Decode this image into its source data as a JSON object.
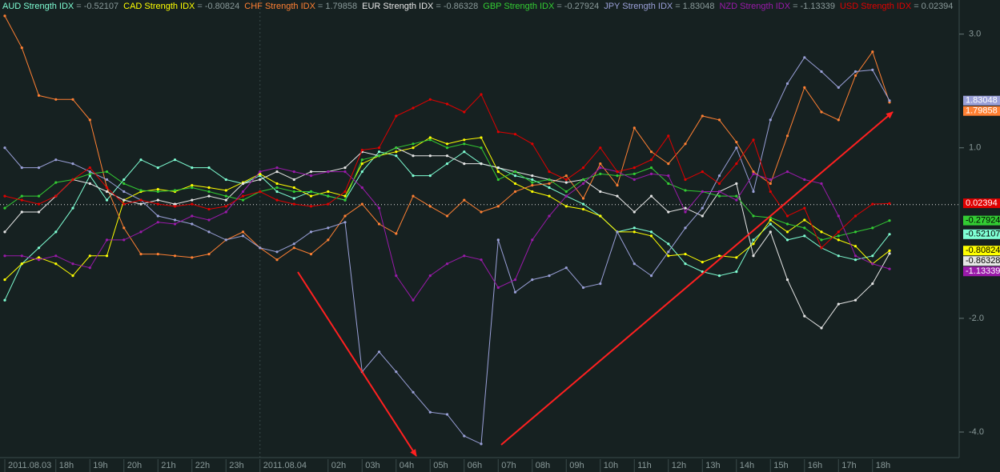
{
  "chart_data": {
    "type": "line",
    "value_separator": "=",
    "categories": [
      "2011.08.03",
      null,
      null,
      "18h",
      null,
      "19h",
      null,
      "20h",
      null,
      "21h",
      null,
      "22h",
      null,
      "23h",
      null,
      "2011.08.04",
      null,
      null,
      null,
      "02h",
      null,
      "03h",
      null,
      "04h",
      null,
      "05h",
      null,
      "06h",
      null,
      "07h",
      null,
      "08h",
      null,
      "09h",
      null,
      "10h",
      null,
      "11h",
      null,
      "12h",
      null,
      "13h",
      null,
      "14h",
      null,
      "15h",
      null,
      "16h",
      null,
      "17h",
      null,
      "18h",
      null
    ],
    "ylim": [
      3.6,
      -4.45
    ],
    "yticks": [
      {
        "value": 3,
        "label": "3.0"
      },
      {
        "value": 1,
        "label": "1.0"
      },
      {
        "value": -2,
        "label": "-2.0"
      },
      {
        "value": -4,
        "label": "-4.0"
      }
    ],
    "zero_line": true,
    "series": [
      {
        "name": "AUD Strength IDX",
        "current": -0.52107,
        "color": "#7fffd4",
        "values": [
          -1.68,
          -1.04,
          -0.76,
          -0.48,
          -0.06,
          0.51,
          0.08,
          0.44,
          0.79,
          0.65,
          0.79,
          0.65,
          0.65,
          0.44,
          0.37,
          0.51,
          0.23,
          0.11,
          0.23,
          0.15,
          0.08,
          0.58,
          0.93,
          0.86,
          0.51,
          0.51,
          0.72,
          0.93,
          0.72,
          0.65,
          0.51,
          0.44,
          0.3,
          0.15,
          0.01,
          -0.2,
          -0.48,
          -0.41,
          -0.48,
          -0.69,
          -1.04,
          -1.18,
          -1.25,
          -1.18,
          -0.62,
          -0.34,
          -0.62,
          -0.55,
          -0.76,
          -0.9,
          -0.97,
          -0.9,
          -0.52
        ]
      },
      {
        "name": "CAD Strength IDX",
        "current": -0.80824,
        "color": "#ffff00",
        "values": [
          -1.32,
          -1.04,
          -0.93,
          -1.04,
          -1.25,
          -0.9,
          -0.9,
          0.08,
          0.23,
          0.27,
          0.23,
          0.34,
          0.3,
          0.25,
          0.39,
          0.54,
          0.37,
          0.3,
          0.15,
          0.23,
          0.15,
          0.72,
          0.86,
          0.93,
          1.0,
          1.18,
          1.07,
          1.14,
          1.18,
          0.58,
          0.37,
          0.23,
          0.15,
          -0.03,
          -0.08,
          -0.2,
          -0.48,
          -0.48,
          -0.55,
          -0.9,
          -0.87,
          -1.01,
          -0.9,
          -0.93,
          -0.69,
          -0.27,
          -0.48,
          -0.27,
          -0.48,
          -0.62,
          -0.73,
          -1.04,
          -0.81
        ]
      },
      {
        "name": "CHF Strength IDX",
        "current": 1.79858,
        "color": "#ff8033",
        "values": [
          3.32,
          2.76,
          1.92,
          1.85,
          1.85,
          1.49,
          0.3,
          -0.41,
          -0.87,
          -0.87,
          -0.9,
          -0.93,
          -0.87,
          -0.62,
          -0.48,
          -0.76,
          -0.97,
          -0.76,
          -0.87,
          -0.62,
          -0.2,
          0.01,
          -0.34,
          -0.51,
          0.15,
          -0.03,
          -0.2,
          0.08,
          -0.13,
          -0.03,
          0.23,
          0.34,
          0.37,
          0.51,
          0.11,
          0.72,
          0.34,
          1.35,
          0.93,
          0.72,
          1.07,
          1.56,
          1.49,
          1.1,
          0.58,
          0.37,
          1.21,
          2.06,
          1.63,
          1.49,
          2.27,
          2.69,
          1.8
        ]
      },
      {
        "name": "EUR Strength IDX",
        "current": -0.86328,
        "color": "#e6e6e6",
        "values": [
          -0.48,
          -0.13,
          -0.13,
          0.15,
          0.44,
          0.37,
          0.23,
          0.08,
          0.01,
          0.08,
          0.01,
          0.08,
          0.15,
          0.08,
          0.37,
          0.44,
          0.58,
          0.44,
          0.58,
          0.58,
          0.65,
          0.93,
          0.86,
          1.0,
          0.86,
          0.86,
          0.86,
          0.72,
          0.72,
          0.65,
          0.58,
          0.51,
          0.44,
          0.39,
          0.44,
          0.23,
          0.15,
          -0.13,
          0.15,
          -0.13,
          -0.06,
          -0.2,
          0.23,
          0.37,
          -0.9,
          -0.48,
          -1.32,
          -1.96,
          -2.17,
          -1.75,
          -1.68,
          -1.39,
          -0.86
        ]
      },
      {
        "name": "GBP Strength IDX",
        "current": -0.27924,
        "color": "#33cc33",
        "values": [
          -0.06,
          0.15,
          0.15,
          0.39,
          0.44,
          0.54,
          0.58,
          0.37,
          0.25,
          0.23,
          0.25,
          0.3,
          0.23,
          0.15,
          0.08,
          0.23,
          0.3,
          0.23,
          0.23,
          0.15,
          0.08,
          0.79,
          0.86,
          1.0,
          1.07,
          1.14,
          1.0,
          1.07,
          1.0,
          0.44,
          0.58,
          0.39,
          0.44,
          0.23,
          0.44,
          0.54,
          0.51,
          0.54,
          0.65,
          0.37,
          0.25,
          0.23,
          0.15,
          0.15,
          -0.2,
          -0.23,
          -0.34,
          -0.41,
          -0.62,
          -0.55,
          -0.48,
          -0.41,
          -0.28
        ]
      },
      {
        "name": "JPY Strength IDX",
        "current": 1.83048,
        "color": "#9aa0d8",
        "values": [
          1.0,
          0.65,
          0.65,
          0.79,
          0.72,
          0.58,
          0.44,
          0.23,
          0.08,
          -0.2,
          -0.27,
          -0.34,
          -0.48,
          -0.62,
          -0.55,
          -0.76,
          -0.83,
          -0.69,
          -0.48,
          -0.41,
          -0.31,
          -2.94,
          -2.59,
          -2.94,
          -3.3,
          -3.65,
          -3.69,
          -4.07,
          -4.21,
          -0.62,
          -1.54,
          -1.32,
          -1.25,
          -1.11,
          -1.46,
          -1.39,
          -0.48,
          -1.04,
          -1.25,
          -0.83,
          -0.41,
          -0.06,
          0.51,
          1.0,
          0.23,
          1.49,
          2.13,
          2.59,
          2.34,
          2.06,
          2.34,
          2.37,
          1.83
        ]
      },
      {
        "name": "NZD Strength IDX",
        "current": -1.13339,
        "color": "#9a1aaa",
        "values": [
          -0.9,
          -0.9,
          -0.97,
          -0.9,
          -1.04,
          -1.11,
          -0.62,
          -0.62,
          -0.48,
          -0.31,
          -0.34,
          -0.2,
          -0.27,
          -0.13,
          0.23,
          0.58,
          0.65,
          0.58,
          0.51,
          0.58,
          0.58,
          0.3,
          -0.06,
          -1.25,
          -1.68,
          -1.25,
          -1.04,
          -0.9,
          -0.97,
          -1.46,
          -1.32,
          -0.62,
          -0.2,
          0.15,
          0.37,
          0.65,
          0.58,
          0.44,
          0.54,
          0.51,
          -0.13,
          0.23,
          0.23,
          0.08,
          0.54,
          0.44,
          0.58,
          0.44,
          0.37,
          -0.2,
          -0.9,
          -1.04,
          -1.13
        ]
      },
      {
        "name": "USD Strength IDX",
        "current": 0.02394,
        "color": "#e00000",
        "values": [
          0.15,
          0.08,
          0.01,
          0.15,
          0.44,
          0.65,
          0.3,
          0.01,
          0.08,
          0.01,
          -0.03,
          0.01,
          -0.08,
          -0.03,
          0.15,
          0.23,
          0.08,
          0.01,
          -0.03,
          0.01,
          0.23,
          0.96,
          1.0,
          1.56,
          1.7,
          1.85,
          1.77,
          1.63,
          1.94,
          1.28,
          1.24,
          1.07,
          0.58,
          0.44,
          0.65,
          1.0,
          0.58,
          0.65,
          0.79,
          1.21,
          0.44,
          0.58,
          0.37,
          0.72,
          1.14,
          0.23,
          -0.2,
          -0.06,
          -0.76,
          -0.48,
          -0.2,
          0.01,
          0.02
        ]
      }
    ]
  }
}
